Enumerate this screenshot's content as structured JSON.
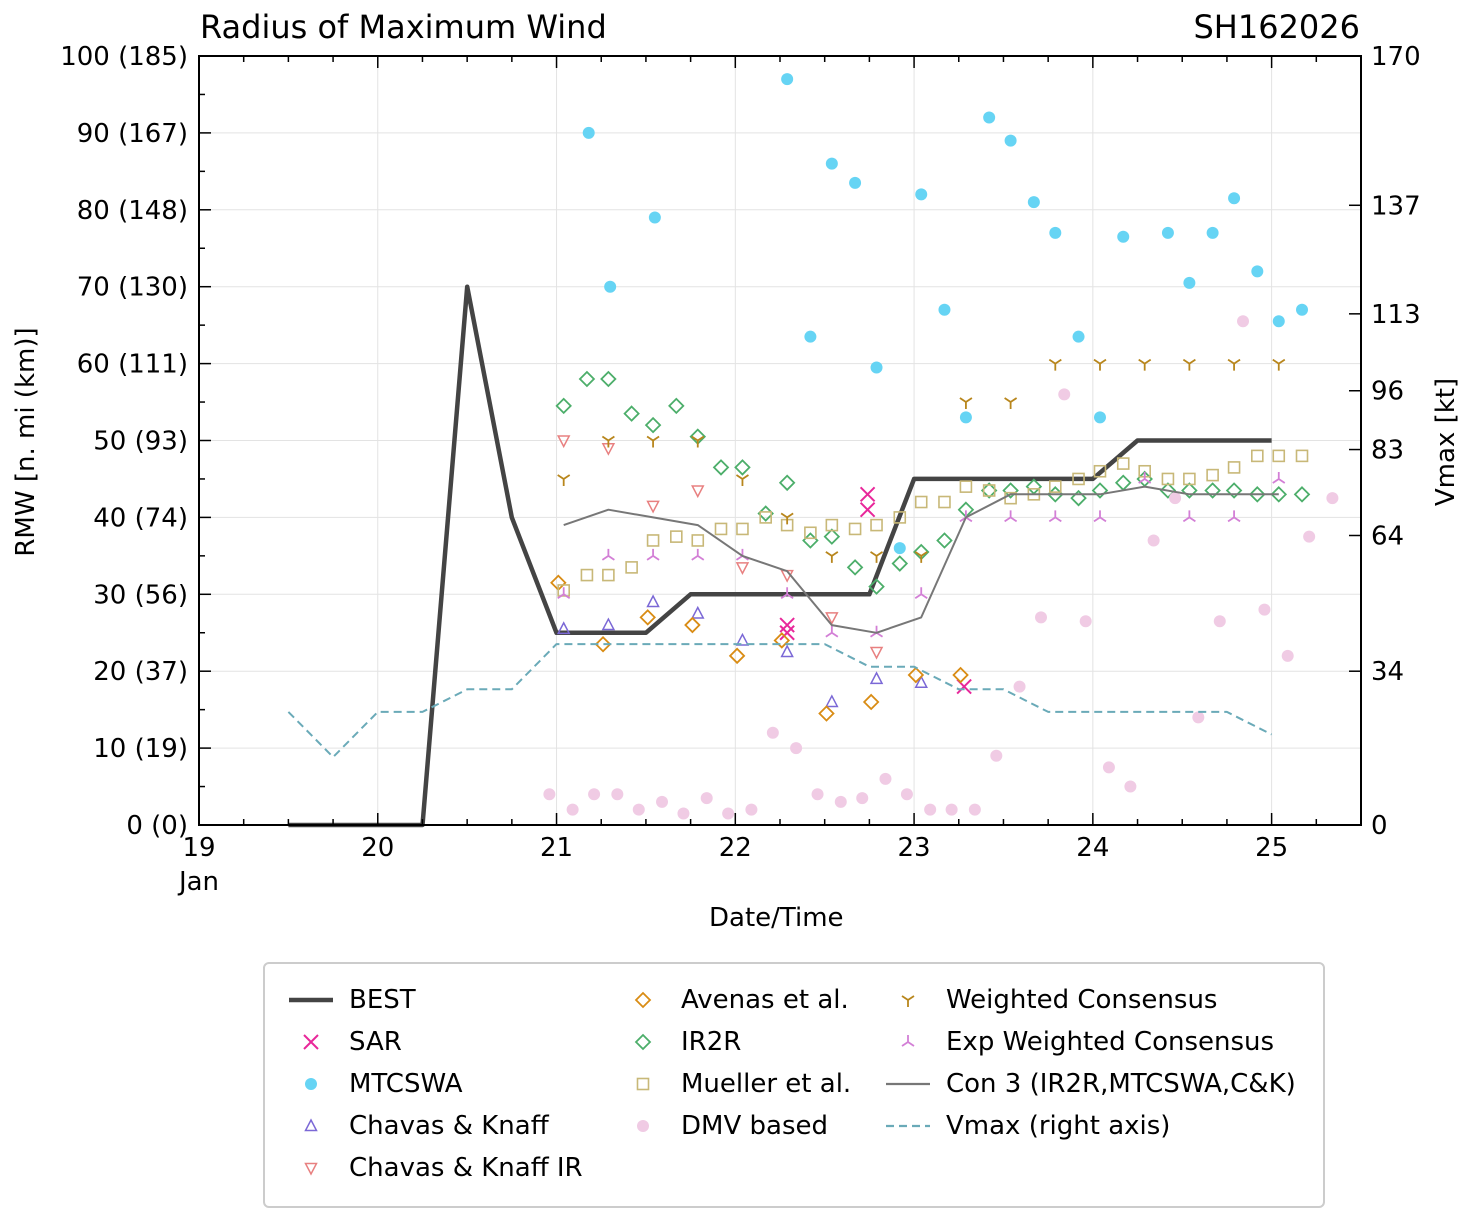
{
  "chart_data": {
    "type": "scatter",
    "title": "Radius of Maximum Wind",
    "case_id": "SH162026",
    "xlabel": "Date/Time",
    "ylabel_left": "RMW [n. mi (km)]",
    "ylabel_right": "Vmax [kt]",
    "xlim": [
      19,
      25.5
    ],
    "ylim": [
      0,
      100
    ],
    "vmax_ylim": [
      0,
      170
    ],
    "x_ticks": [
      {
        "value": 19,
        "label": "19",
        "sublabel": "Jan"
      },
      {
        "value": 20,
        "label": "20"
      },
      {
        "value": 21,
        "label": "21"
      },
      {
        "value": 22,
        "label": "22"
      },
      {
        "value": 23,
        "label": "23"
      },
      {
        "value": 24,
        "label": "24"
      },
      {
        "value": 25,
        "label": "25"
      }
    ],
    "y_ticks_left": [
      {
        "value": 0,
        "label": "0 (0)"
      },
      {
        "value": 10,
        "label": "10 (19)"
      },
      {
        "value": 20,
        "label": "20 (37)"
      },
      {
        "value": 30,
        "label": "30 (56)"
      },
      {
        "value": 40,
        "label": "40 (74)"
      },
      {
        "value": 50,
        "label": "50 (93)"
      },
      {
        "value": 60,
        "label": "60 (111)"
      },
      {
        "value": 70,
        "label": "70 (130)"
      },
      {
        "value": 80,
        "label": "80 (148)"
      },
      {
        "value": 90,
        "label": "90 (167)"
      },
      {
        "value": 100,
        "label": "100 (185)"
      }
    ],
    "y_ticks_right": [
      {
        "value": 0,
        "label": "0"
      },
      {
        "value": 34,
        "label": "34"
      },
      {
        "value": 64,
        "label": "64"
      },
      {
        "value": 83,
        "label": "83"
      },
      {
        "value": 96,
        "label": "96"
      },
      {
        "value": 113,
        "label": "113"
      },
      {
        "value": 137,
        "label": "137"
      },
      {
        "value": 170,
        "label": "170"
      }
    ],
    "series": [
      {
        "name": "BEST",
        "kind": "line",
        "color": "#444444",
        "axis": "left",
        "x": [
          19.5,
          20.25,
          20.5,
          20.75,
          21.0,
          21.25,
          21.5,
          21.75,
          22.0,
          22.25,
          22.5,
          22.75,
          23.0,
          23.25,
          23.5,
          23.75,
          24.0,
          24.25,
          24.5,
          24.75,
          25.0
        ],
        "y": [
          0,
          0,
          70,
          40,
          25,
          25,
          25,
          30,
          30,
          30,
          30,
          30,
          45,
          45,
          45,
          45,
          45,
          50,
          50,
          50,
          50
        ]
      },
      {
        "name": "SAR",
        "kind": "marker",
        "marker": "x",
        "color": "#e8279a",
        "axis": "left",
        "x": [
          22.29,
          22.29,
          22.74,
          22.74,
          23.28
        ],
        "y": [
          26,
          25,
          43,
          41,
          18
        ]
      },
      {
        "name": "MTCSWA",
        "kind": "marker",
        "marker": "circle",
        "color": "#66d4f4",
        "axis": "left",
        "x": [
          21.18,
          21.3,
          21.55,
          22.29,
          22.42,
          22.54,
          22.67,
          22.79,
          22.92,
          23.04,
          23.17,
          23.29,
          23.42,
          23.54,
          23.67,
          23.79,
          23.92,
          24.04,
          24.17,
          24.42,
          24.54,
          24.67,
          24.79,
          24.92,
          25.04,
          25.17
        ],
        "y": [
          90,
          70,
          79,
          97,
          63.5,
          86,
          83.5,
          59.5,
          36,
          82,
          67,
          53,
          92,
          89,
          81,
          77,
          63.5,
          53,
          76.5,
          77,
          70.5,
          77,
          81.5,
          72,
          65.5,
          67
        ]
      },
      {
        "name": "Chavas & Knaff",
        "kind": "marker",
        "marker": "triangle-up",
        "color": "#7b68d6",
        "axis": "left",
        "x": [
          21.04,
          21.29,
          21.54,
          21.79,
          22.04,
          22.29,
          22.54,
          22.79,
          23.04
        ],
        "y": [
          25.5,
          26,
          29,
          27.5,
          24,
          22.5,
          16,
          19,
          18.5
        ]
      },
      {
        "name": "Chavas & Knaff IR",
        "kind": "marker",
        "marker": "triangle-down",
        "color": "#e88080",
        "axis": "left",
        "x": [
          21.04,
          21.29,
          21.54,
          21.79,
          22.04,
          22.29,
          22.54,
          22.79
        ],
        "y": [
          50,
          49,
          41.5,
          43.5,
          33.5,
          32.5,
          27,
          22.5
        ]
      },
      {
        "name": "Avenas et al.",
        "kind": "marker",
        "marker": "diamond",
        "color": "#d98c14",
        "axis": "left",
        "x": [
          21.01,
          21.26,
          21.51,
          21.76,
          22.01,
          22.26,
          22.51,
          22.76,
          23.01,
          23.26
        ],
        "y": [
          31.5,
          23.5,
          27,
          26,
          22,
          24,
          14.5,
          16,
          19.5,
          19.5
        ]
      },
      {
        "name": "IR2R",
        "kind": "marker",
        "marker": "diamond",
        "color": "#4cae6a",
        "axis": "left",
        "x": [
          21.04,
          21.17,
          21.29,
          21.42,
          21.54,
          21.67,
          21.79,
          21.92,
          22.04,
          22.17,
          22.29,
          22.42,
          22.54,
          22.67,
          22.79,
          22.92,
          23.04,
          23.17,
          23.29,
          23.42,
          23.54,
          23.67,
          23.79,
          23.92,
          24.04,
          24.17,
          24.29,
          24.42,
          24.54,
          24.67,
          24.79,
          24.92,
          25.04,
          25.17
        ],
        "y": [
          54.5,
          58,
          58,
          53.5,
          52,
          54.5,
          50.5,
          46.5,
          46.5,
          40.5,
          44.5,
          37,
          37.5,
          33.5,
          31,
          34,
          35.5,
          37,
          41,
          43.5,
          43.5,
          44,
          43,
          42.5,
          43.5,
          44.5,
          45,
          43.5,
          43.5,
          43.5,
          43.5,
          43,
          43,
          43
        ]
      },
      {
        "name": "Mueller et al.",
        "kind": "marker",
        "marker": "square",
        "color": "#c8b878",
        "axis": "left",
        "x": [
          21.04,
          21.17,
          21.29,
          21.42,
          21.54,
          21.67,
          21.79,
          21.92,
          22.04,
          22.17,
          22.29,
          22.42,
          22.54,
          22.67,
          22.79,
          22.92,
          23.04,
          23.17,
          23.29,
          23.42,
          23.54,
          23.67,
          23.79,
          23.92,
          24.04,
          24.17,
          24.29,
          24.42,
          24.54,
          24.67,
          24.79,
          24.92,
          25.04,
          25.17
        ],
        "y": [
          30.5,
          32.5,
          32.5,
          33.5,
          37,
          37.5,
          37,
          38.5,
          38.5,
          40,
          39,
          38,
          39,
          38.5,
          39,
          40,
          42,
          42,
          44,
          43.5,
          42.5,
          43,
          44,
          45,
          46,
          47,
          46,
          45,
          45,
          45.5,
          46.5,
          48,
          48,
          48
        ]
      },
      {
        "name": "DMV based",
        "kind": "marker",
        "marker": "circle",
        "color": "#f0cbe4",
        "axis": "left",
        "x": [
          20.96,
          21.09,
          21.21,
          21.34,
          21.46,
          21.59,
          21.71,
          21.84,
          21.96,
          22.09,
          22.21,
          22.34,
          22.46,
          22.59,
          22.71,
          22.84,
          22.96,
          23.09,
          23.21,
          23.34,
          23.46,
          23.59,
          23.71,
          23.84,
          23.96,
          24.09,
          24.21,
          24.34,
          24.46,
          24.59,
          24.71,
          24.84,
          24.96,
          25.09,
          25.21,
          25.34
        ],
        "y": [
          4,
          2,
          4,
          4,
          2,
          3,
          1.5,
          3.5,
          1.5,
          2,
          12,
          10,
          4,
          3,
          3.5,
          6,
          4,
          2,
          2,
          2,
          9,
          18,
          27,
          56,
          26.5,
          7.5,
          5,
          37,
          42.5,
          14,
          26.5,
          65.5,
          28,
          22,
          37.5,
          42.5
        ]
      },
      {
        "name": "Weighted Consensus",
        "kind": "marker",
        "marker": "tri-down",
        "color": "#b8861c",
        "axis": "left",
        "x": [
          21.04,
          21.29,
          21.54,
          21.79,
          22.04,
          22.29,
          22.54,
          22.79,
          23.04,
          23.29,
          23.54,
          23.79,
          24.04,
          24.29,
          24.54,
          24.79,
          25.04
        ],
        "y": [
          45,
          50,
          50,
          50,
          45,
          40,
          35,
          35,
          35,
          55,
          55,
          60,
          60,
          60,
          60,
          60,
          60
        ]
      },
      {
        "name": "Exp Weighted Consensus",
        "kind": "marker",
        "marker": "tri-up",
        "color": "#d37fd6",
        "axis": "left",
        "x": [
          21.04,
          21.29,
          21.54,
          21.79,
          22.04,
          22.29,
          22.54,
          22.79,
          23.04,
          23.29,
          23.54,
          23.79,
          24.04,
          24.29,
          24.54,
          24.79,
          25.04
        ],
        "y": [
          30,
          35,
          35,
          35,
          35,
          30,
          25,
          25,
          30,
          40,
          40,
          40,
          40,
          45,
          40,
          40,
          45
        ]
      },
      {
        "name": "Con 3 (IR2R,MTCSWA,C&K)",
        "kind": "line",
        "color": "#777777",
        "axis": "left",
        "x": [
          21.04,
          21.29,
          21.54,
          21.79,
          22.04,
          22.29,
          22.54,
          22.79,
          23.04,
          23.29,
          23.54,
          23.79,
          24.04,
          24.29,
          24.54,
          24.79,
          25.04
        ],
        "y": [
          39,
          41,
          40,
          39,
          35,
          33,
          26,
          25,
          27,
          40,
          43,
          43,
          43,
          44,
          43,
          43,
          43
        ]
      },
      {
        "name": "Vmax (right axis)",
        "kind": "line",
        "dashed": true,
        "color": "#6aaab8",
        "axis": "right",
        "x": [
          19.5,
          19.75,
          20.0,
          20.25,
          20.5,
          20.75,
          21.0,
          21.25,
          21.5,
          21.75,
          22.0,
          22.25,
          22.5,
          22.75,
          23.0,
          23.25,
          23.5,
          23.75,
          24.0,
          24.25,
          24.5,
          24.75,
          25.0
        ],
        "y": [
          25,
          15,
          25,
          25,
          30,
          30,
          40,
          40,
          40,
          40,
          40,
          40,
          40,
          35,
          35,
          30,
          30,
          25,
          25,
          25,
          25,
          25,
          20
        ]
      }
    ]
  }
}
